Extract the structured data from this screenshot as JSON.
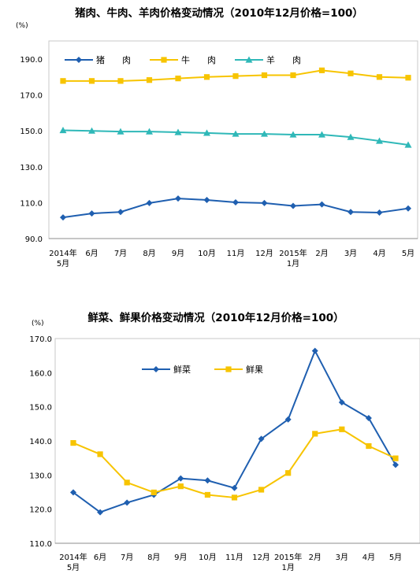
{
  "chart_data": [
    {
      "type": "line",
      "title": "猪肉、牛肉、羊肉价格变动情况（2010年12月价格=100）",
      "unit_label": "(%)",
      "categories": [
        [
          "2014年",
          "5月"
        ],
        [
          "6月"
        ],
        [
          "7月"
        ],
        [
          "8月"
        ],
        [
          "9月"
        ],
        [
          "10月"
        ],
        [
          "11月"
        ],
        [
          "12月"
        ],
        [
          "2015年",
          "1月"
        ],
        [
          "2月"
        ],
        [
          "3月"
        ],
        [
          "4月"
        ],
        [
          "5月"
        ]
      ],
      "ylim": [
        90,
        190
      ],
      "yticks": [
        "90.0",
        "110.0",
        "130.0",
        "150.0",
        "170.0",
        "190.0"
      ],
      "grid": false,
      "legend_position": "top-left",
      "series": [
        {
          "name": "猪　　肉",
          "color": "#1f5fb0",
          "marker": "diamond",
          "values": [
            101.8,
            104.0,
            104.8,
            109.8,
            112.3,
            111.5,
            110.2,
            109.8,
            108.2,
            109.0,
            104.8,
            104.5,
            106.8
          ]
        },
        {
          "name": "牛　　肉",
          "color": "#f7c400",
          "marker": "square",
          "values": [
            177.8,
            177.8,
            177.8,
            178.3,
            179.2,
            180.0,
            180.5,
            181.0,
            181.0,
            183.7,
            182.0,
            180.0,
            179.6
          ]
        },
        {
          "name": "羊　　肉",
          "color": "#2fb8b8",
          "marker": "triangle",
          "values": [
            150.3,
            150.0,
            149.6,
            149.6,
            149.2,
            148.8,
            148.3,
            148.3,
            147.9,
            147.9,
            146.5,
            144.4,
            142.2
          ]
        }
      ]
    },
    {
      "type": "line",
      "title": "鲜菜、鲜果价格变动情况（2010年12月价格=100）",
      "unit_label": "(%)",
      "categories": [
        [
          "2014年",
          "5月"
        ],
        [
          "6月"
        ],
        [
          "7月"
        ],
        [
          "8月"
        ],
        [
          "9月"
        ],
        [
          "10月"
        ],
        [
          "11月"
        ],
        [
          "12月"
        ],
        [
          "2015年",
          "1月"
        ],
        [
          "2月"
        ],
        [
          "3月"
        ],
        [
          "4月"
        ],
        [
          "5月"
        ]
      ],
      "ylim": [
        110,
        170
      ],
      "yticks": [
        "110.0",
        "120.0",
        "130.0",
        "140.0",
        "150.0",
        "160.0",
        "170.0"
      ],
      "grid": false,
      "legend_position": "top-center",
      "series": [
        {
          "name": "鲜菜",
          "color": "#1f5fb0",
          "marker": "diamond",
          "values": [
            124.9,
            119.1,
            121.9,
            124.2,
            129.0,
            128.4,
            126.2,
            140.6,
            146.3,
            166.4,
            151.3,
            146.7,
            133.0
          ]
        },
        {
          "name": "鲜果",
          "color": "#f7c400",
          "marker": "square",
          "values": [
            139.4,
            136.1,
            127.8,
            124.9,
            126.7,
            124.2,
            123.4,
            125.7,
            130.6,
            142.1,
            143.4,
            138.5,
            134.9
          ]
        }
      ]
    }
  ]
}
